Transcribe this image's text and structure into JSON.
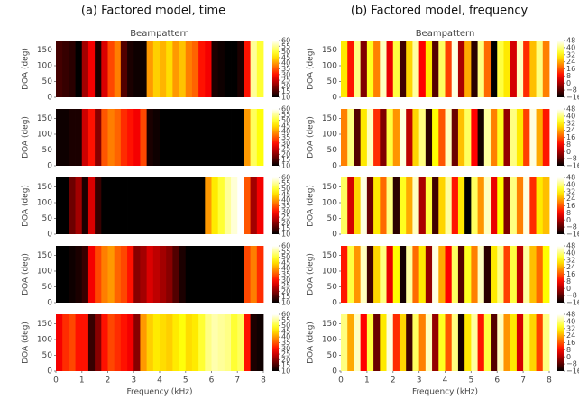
{
  "figure_titles": [
    "(a) Factored model, time",
    "(b) Factored model, frequency"
  ],
  "chart_data": [
    {
      "type": "heatmap",
      "title": "Beampattern",
      "ylabel": "DOA (deg)",
      "xlim": [
        0,
        8
      ],
      "ylim": [
        0,
        180
      ],
      "yticks": [
        0,
        50,
        100,
        150
      ],
      "colormap": "hot",
      "clim": [
        10,
        60
      ],
      "cticks": [
        60,
        55,
        50,
        45,
        40,
        35,
        30,
        25,
        20,
        15,
        10
      ],
      "values": [
        15,
        14,
        13,
        10,
        22,
        28,
        12,
        26,
        34,
        38,
        16,
        12,
        11,
        11,
        40,
        44,
        42,
        45,
        40,
        43,
        38,
        36,
        30,
        28,
        12,
        11,
        10,
        10,
        12,
        30,
        55,
        50
      ]
    },
    {
      "type": "heatmap",
      "ylabel": "DOA (deg)",
      "xlim": [
        0,
        8
      ],
      "ylim": [
        0,
        180
      ],
      "yticks": [
        0,
        50,
        100,
        150
      ],
      "colormap": "hot",
      "clim": [
        10,
        60
      ],
      "cticks": [
        60,
        55,
        50,
        45,
        40,
        35,
        30,
        25,
        20,
        15,
        10
      ],
      "values": [
        11,
        11,
        12,
        12,
        25,
        30,
        20,
        35,
        38,
        36,
        32,
        30,
        28,
        34,
        12,
        11,
        10,
        10,
        10,
        10,
        10,
        10,
        10,
        10,
        10,
        10,
        10,
        10,
        10,
        40,
        52,
        48
      ]
    },
    {
      "type": "heatmap",
      "ylabel": "DOA (deg)",
      "xlim": [
        0,
        8
      ],
      "ylim": [
        0,
        180
      ],
      "yticks": [
        0,
        50,
        100,
        150
      ],
      "colormap": "hot",
      "clim": [
        10,
        60
      ],
      "cticks": [
        60,
        55,
        50,
        45,
        40,
        35,
        30,
        25,
        20,
        15,
        10
      ],
      "values": [
        10,
        10,
        18,
        22,
        12,
        26,
        14,
        10,
        10,
        10,
        10,
        10,
        10,
        10,
        10,
        10,
        10,
        10,
        10,
        10,
        10,
        10,
        10,
        40,
        46,
        50,
        55,
        58,
        60,
        35,
        22,
        28
      ]
    },
    {
      "type": "heatmap",
      "ylabel": "DOA (deg)",
      "xlim": [
        0,
        8
      ],
      "ylim": [
        0,
        180
      ],
      "yticks": [
        0,
        50,
        100,
        150
      ],
      "colormap": "hot",
      "clim": [
        10,
        60
      ],
      "cticks": [
        60,
        55,
        50,
        45,
        40,
        35,
        30,
        25,
        20,
        15,
        10
      ],
      "values": [
        10,
        10,
        11,
        12,
        14,
        28,
        34,
        38,
        40,
        36,
        34,
        30,
        20,
        22,
        26,
        24,
        22,
        20,
        16,
        12,
        10,
        10,
        10,
        10,
        10,
        10,
        10,
        10,
        10,
        34,
        38,
        32
      ]
    },
    {
      "type": "heatmap",
      "ylabel": "DOA (deg)",
      "xlabel": "Frequency (kHz)",
      "xlim": [
        0,
        8
      ],
      "ylim": [
        0,
        180
      ],
      "xticks": [
        0,
        1,
        2,
        3,
        4,
        5,
        6,
        7,
        8
      ],
      "yticks": [
        0,
        50,
        100,
        150
      ],
      "colormap": "hot",
      "clim": [
        10,
        60
      ],
      "cticks": [
        60,
        55,
        50,
        45,
        40,
        35,
        30,
        25,
        20,
        15,
        10
      ],
      "values": [
        28,
        32,
        34,
        30,
        30,
        14,
        20,
        30,
        34,
        32,
        30,
        28,
        20,
        40,
        44,
        46,
        45,
        44,
        46,
        48,
        45,
        46,
        50,
        54,
        56,
        55,
        54,
        50,
        52,
        30,
        12,
        11
      ]
    },
    {
      "type": "heatmap",
      "title": "Beampattern",
      "ylabel": "DOA (deg)",
      "xlim": [
        0,
        8
      ],
      "ylim": [
        0,
        180
      ],
      "yticks": [
        0,
        50,
        100,
        150
      ],
      "colormap": "hot",
      "clim": [
        -16,
        48
      ],
      "cticks": [
        48,
        40,
        32,
        24,
        16,
        8,
        0,
        {
          "value": -8,
          "label": "−8"
        },
        {
          "value": -16,
          "label": "−16"
        }
      ],
      "values": [
        30,
        10,
        40,
        -4,
        34,
        20,
        44,
        6,
        36,
        -10,
        28,
        42,
        8,
        30,
        -8,
        38,
        14,
        46,
        0,
        24,
        -12,
        40,
        18,
        -16,
        36,
        30,
        4,
        44,
        12,
        26,
        40,
        20
      ]
    },
    {
      "type": "heatmap",
      "ylabel": "DOA (deg)",
      "xlim": [
        0,
        8
      ],
      "ylim": [
        0,
        180
      ],
      "yticks": [
        0,
        50,
        100,
        150
      ],
      "colormap": "hot",
      "clim": [
        -16,
        48
      ],
      "cticks": [
        48,
        40,
        32,
        24,
        16,
        8,
        0,
        {
          "value": -8,
          "label": "−8"
        },
        {
          "value": -16,
          "label": "−16"
        }
      ],
      "values": [
        20,
        40,
        -8,
        30,
        44,
        12,
        -4,
        36,
        22,
        46,
        2,
        28,
        40,
        -12,
        32,
        16,
        44,
        -6,
        26,
        38,
        8,
        -14,
        42,
        20,
        34,
        -2,
        40,
        30,
        14,
        46,
        24,
        10
      ]
    },
    {
      "type": "heatmap",
      "ylabel": "DOA (deg)",
      "xlim": [
        0,
        8
      ],
      "ylim": [
        0,
        180
      ],
      "yticks": [
        0,
        50,
        100,
        150
      ],
      "colormap": "hot",
      "clim": [
        -16,
        48
      ],
      "cticks": [
        48,
        40,
        32,
        24,
        16,
        8,
        0,
        {
          "value": -8,
          "label": "−8"
        },
        {
          "value": -16,
          "label": "−16"
        }
      ],
      "values": [
        38,
        4,
        28,
        46,
        -6,
        30,
        18,
        40,
        -12,
        34,
        24,
        44,
        0,
        36,
        -10,
        28,
        42,
        10,
        30,
        -16,
        38,
        22,
        44,
        6,
        32,
        -4,
        40,
        20,
        46,
        12,
        30,
        26
      ]
    },
    {
      "type": "heatmap",
      "ylabel": "DOA (deg)",
      "xlim": [
        0,
        8
      ],
      "ylim": [
        0,
        180
      ],
      "yticks": [
        0,
        50,
        100,
        150
      ],
      "colormap": "hot",
      "clim": [
        -16,
        48
      ],
      "cticks": [
        48,
        40,
        32,
        24,
        16,
        8,
        0,
        {
          "value": -8,
          "label": "−8"
        },
        {
          "value": -16,
          "label": "−16"
        }
      ],
      "values": [
        10,
        36,
        22,
        44,
        -10,
        28,
        40,
        6,
        32,
        -14,
        42,
        18,
        30,
        -2,
        46,
        24,
        8,
        38,
        -8,
        34,
        20,
        44,
        -12,
        30,
        40,
        14,
        36,
        2,
        42,
        26,
        18,
        32
      ]
    },
    {
      "type": "heatmap",
      "ylabel": "DOA (deg)",
      "xlabel": "Frequency (kHz)",
      "xlim": [
        0,
        8
      ],
      "ylim": [
        0,
        180
      ],
      "xticks": [
        0,
        1,
        2,
        3,
        4,
        5,
        6,
        7,
        8
      ],
      "yticks": [
        0,
        50,
        100,
        150
      ],
      "colormap": "hot",
      "clim": [
        -16,
        48
      ],
      "cticks": [
        48,
        40,
        32,
        24,
        16,
        8,
        0,
        {
          "value": -8,
          "label": "−8"
        },
        {
          "value": -16,
          "label": "−16"
        }
      ],
      "values": [
        40,
        24,
        44,
        8,
        36,
        -6,
        30,
        46,
        12,
        28,
        -10,
        38,
        20,
        44,
        -2,
        34,
        16,
        40,
        -14,
        30,
        42,
        10,
        36,
        -8,
        44,
        22,
        30,
        4,
        38,
        28,
        14,
        40
      ]
    }
  ]
}
